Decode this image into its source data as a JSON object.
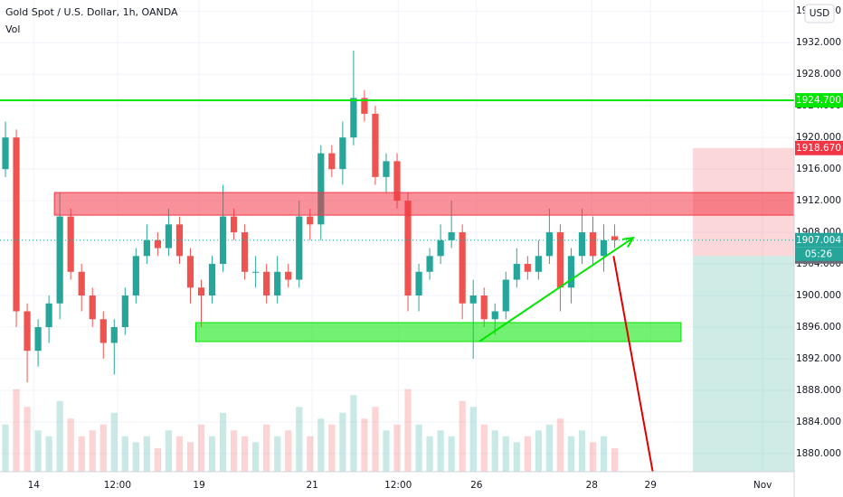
{
  "chart_data": {
    "type": "candlestick",
    "title": "Gold Spot / U.S. Dollar, 1h, OANDA",
    "subtitle": "Vol",
    "currency": "USD",
    "x": [
      0.5,
      1.5,
      2.5,
      3.5,
      4.5,
      5.5,
      6.5,
      7.5,
      8.5,
      9.5,
      10.5,
      11.5,
      12.5,
      13.5,
      14.5,
      15.5,
      16.5,
      17.5,
      18.5,
      19.5,
      20.5,
      21.5,
      22.5,
      23.5,
      24.5,
      25.5,
      26.5,
      27.5,
      28.5,
      29.5,
      30.5,
      31.5,
      32.5,
      33.5,
      34.5,
      35.5,
      36.5,
      37.5,
      38.5,
      39.5,
      40.5,
      41.5,
      42.5,
      43.5,
      44.5,
      45.5,
      46.5,
      47.5,
      48.5,
      49.5,
      50.5,
      51.5,
      52.5,
      53.5,
      54.5,
      55.5,
      56.5
    ],
    "open": [
      1916,
      1920,
      1898,
      1893,
      1896,
      1899,
      1910,
      1903,
      1900,
      1897,
      1894,
      1896,
      1900,
      1905,
      1907,
      1906,
      1909,
      1905,
      1901,
      1900,
      1904,
      1910,
      1908,
      1903,
      1903,
      1900,
      1903,
      1902,
      1910,
      1909,
      1918,
      1916,
      1920,
      1925,
      1923,
      1915,
      1917,
      1912,
      1900,
      1903,
      1905,
      1907,
      1908,
      1899,
      1900,
      1897,
      1898,
      1902,
      1904,
      1903,
      1905,
      1908,
      1901,
      1905,
      1908,
      1905,
      1907.5
    ],
    "high": [
      1922,
      1921,
      1899,
      1897,
      1900,
      1913,
      1911,
      1904,
      1901,
      1898,
      1897,
      1901,
      1906,
      1909,
      1908,
      1911,
      1910,
      1906,
      1902,
      1905,
      1914,
      1911,
      1909,
      1905,
      1904,
      1905,
      1904,
      1912,
      1911,
      1919,
      1919,
      1922,
      1931,
      1926,
      1924,
      1918,
      1918,
      1913,
      1904,
      1906,
      1909,
      1912,
      1909,
      1902,
      1901,
      1899,
      1903,
      1906,
      1905,
      1907,
      1911,
      1909,
      1906,
      1911,
      1910,
      1909,
      1909
    ],
    "low": [
      1915,
      1896,
      1889,
      1891,
      1894,
      1897,
      1902,
      1898,
      1896,
      1892,
      1890,
      1895,
      1899,
      1904,
      1905,
      1905,
      1904,
      1899,
      1896,
      1899,
      1903,
      1907,
      1902,
      1901,
      1899,
      1899,
      1901,
      1901,
      1907,
      1907,
      1915,
      1914,
      1919,
      1922,
      1914,
      1913,
      1911,
      1898,
      1898,
      1902,
      1904,
      1906,
      1897,
      1892,
      1896,
      1895,
      1897,
      1901,
      1902,
      1902,
      1904,
      1898,
      1899,
      1904,
      1904,
      1903,
      1906
    ],
    "close": [
      1920,
      1898,
      1893,
      1896,
      1899,
      1910,
      1903,
      1900,
      1897,
      1894,
      1896,
      1900,
      1905,
      1907,
      1906,
      1909,
      1905,
      1901,
      1900,
      1904,
      1910,
      1908,
      1903,
      1903,
      1900,
      1903,
      1902,
      1910,
      1909,
      1918,
      1916,
      1920,
      1925,
      1923,
      1915,
      1917,
      1912,
      1900,
      1903,
      1905,
      1907,
      1908,
      1899,
      1900,
      1897,
      1898,
      1902,
      1904,
      1903,
      1905,
      1908,
      1901,
      1905,
      1908,
      1905,
      1907,
      1907
    ],
    "volume": [
      40,
      70,
      55,
      35,
      30,
      60,
      45,
      30,
      35,
      40,
      50,
      30,
      25,
      30,
      20,
      35,
      30,
      25,
      40,
      30,
      50,
      35,
      30,
      25,
      40,
      30,
      35,
      55,
      30,
      45,
      40,
      50,
      65,
      45,
      55,
      35,
      40,
      70,
      40,
      30,
      35,
      30,
      60,
      55,
      40,
      35,
      30,
      25,
      30,
      35,
      40,
      45,
      30,
      35,
      25,
      30,
      20
    ],
    "up_color": "#26a69a",
    "down_color": "#ef5350",
    "xlim": [
      0,
      73
    ],
    "ylim": [
      1877.7,
      1937.4
    ],
    "volume_ylim": [
      0,
      400
    ],
    "xticks": [
      {
        "value": 3.1,
        "label": "14"
      },
      {
        "value": 10.8,
        "label": "12:00"
      },
      {
        "value": 18.3,
        "label": "19"
      },
      {
        "value": 28.7,
        "label": "21"
      },
      {
        "value": 36.6,
        "label": "12:00"
      },
      {
        "value": 43.8,
        "label": "26"
      },
      {
        "value": 54.4,
        "label": "28"
      },
      {
        "value": 59.8,
        "label": "29"
      },
      {
        "value": 70.1,
        "label": "Nov"
      }
    ],
    "yticks": [
      {
        "value": 1880,
        "label": "1880.000"
      },
      {
        "value": 1884,
        "label": "1884.000"
      },
      {
        "value": 1888,
        "label": "1888.000"
      },
      {
        "value": 1892,
        "label": "1892.000"
      },
      {
        "value": 1896,
        "label": "1896.000"
      },
      {
        "value": 1900,
        "label": "1900.000"
      },
      {
        "value": 1904,
        "label": "1904.000"
      },
      {
        "value": 1908,
        "label": "1908.000"
      },
      {
        "value": 1912,
        "label": "1912.000"
      },
      {
        "value": 1916,
        "label": "1916.000"
      },
      {
        "value": 1920,
        "label": "1920.000"
      },
      {
        "value": 1924,
        "label": "1924.000"
      },
      {
        "value": 1928,
        "label": "1928.000"
      },
      {
        "value": 1932,
        "label": "1932.000"
      },
      {
        "value": 1936,
        "label": "1936.000"
      }
    ],
    "grid": true,
    "hline": {
      "value": 1924.7,
      "color": "#00e600"
    },
    "zones": [
      {
        "x": [
          5.0,
          73
        ],
        "y": [
          1910.17,
          1913.03
        ],
        "color": "#f23645"
      },
      {
        "x": [
          18.0,
          62.6
        ],
        "y": [
          1894.17,
          1896.57
        ],
        "color": "#00e600"
      }
    ],
    "arrow": {
      "x": [
        44.05,
        58.2
      ],
      "y": [
        1894.17,
        1907.3
      ],
      "color": "#00e600"
    },
    "projection": {
      "x": [
        56.4,
        60.0
      ],
      "y": [
        1905.0,
        1877.7
      ],
      "color": "#e00000"
    },
    "position": {
      "x": [
        63.7,
        73
      ],
      "stop": 1918.67,
      "entry": 1905.0
    },
    "last_price": 1907.004,
    "price_tags": [
      {
        "value": 1924.7,
        "label": "1924.700",
        "color": "#00e600"
      },
      {
        "value": 1918.67,
        "label": "1918.670",
        "color": "#f23645"
      },
      {
        "value": 1907.004,
        "label": "1907.004",
        "color": "#26a69a"
      },
      {
        "value": 1904.944,
        "label": "1904.944",
        "color": "#6a6d78"
      }
    ],
    "countdown": "05:26"
  }
}
